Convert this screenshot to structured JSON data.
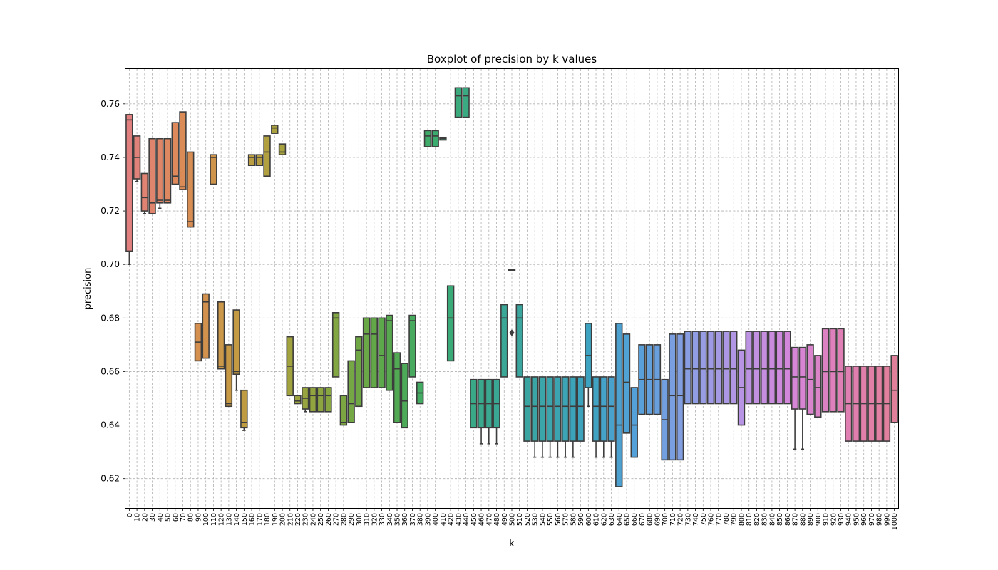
{
  "chart_data": {
    "type": "boxplot",
    "title": "Boxplot of precision by k values",
    "xlabel": "k",
    "ylabel": "precision",
    "ylim": [
      0.609,
      0.773
    ],
    "yticks": [
      "0.62",
      "0.64",
      "0.66",
      "0.68",
      "0.70",
      "0.72",
      "0.74",
      "0.76"
    ],
    "grid": true,
    "palette": [
      "#e1807f",
      "#dc8a57",
      "#c79a44",
      "#a7a23e",
      "#84a640",
      "#5aa84a",
      "#3aac6e",
      "#3aa88f",
      "#3ba5a6",
      "#3da3c0",
      "#56a0db",
      "#8c9ee2",
      "#b894e4",
      "#d586d9",
      "#e07fb4",
      "#e1809a"
    ],
    "boxes": [
      {
        "k": "0",
        "q1": 0.705,
        "med": 0.754,
        "q3": 0.756,
        "lo": 0.7,
        "hi": 0.756
      },
      {
        "k": "10",
        "q1": 0.732,
        "med": 0.74,
        "q3": 0.748,
        "lo": 0.731,
        "hi": 0.748
      },
      {
        "k": "20",
        "q1": 0.72,
        "med": 0.725,
        "q3": 0.734,
        "lo": 0.719,
        "hi": 0.734
      },
      {
        "k": "30",
        "q1": 0.719,
        "med": 0.723,
        "q3": 0.747,
        "lo": 0.719,
        "hi": 0.747
      },
      {
        "k": "40",
        "q1": 0.723,
        "med": 0.724,
        "q3": 0.747,
        "lo": 0.721,
        "hi": 0.747
      },
      {
        "k": "50",
        "q1": 0.723,
        "med": 0.724,
        "q3": 0.747,
        "lo": 0.723,
        "hi": 0.747
      },
      {
        "k": "60",
        "q1": 0.73,
        "med": 0.733,
        "q3": 0.753,
        "lo": 0.73,
        "hi": 0.753
      },
      {
        "k": "70",
        "q1": 0.728,
        "med": 0.729,
        "q3": 0.757,
        "lo": 0.728,
        "hi": 0.757
      },
      {
        "k": "80",
        "q1": 0.714,
        "med": 0.716,
        "q3": 0.742,
        "lo": 0.714,
        "hi": 0.742
      },
      {
        "k": "90",
        "q1": 0.664,
        "med": 0.671,
        "q3": 0.678,
        "lo": 0.664,
        "hi": 0.678
      },
      {
        "k": "100",
        "q1": 0.665,
        "med": 0.686,
        "q3": 0.689,
        "lo": 0.665,
        "hi": 0.689
      },
      {
        "k": "110",
        "q1": 0.73,
        "med": 0.74,
        "q3": 0.741,
        "lo": 0.73,
        "hi": 0.741
      },
      {
        "k": "120",
        "q1": 0.661,
        "med": 0.662,
        "q3": 0.686,
        "lo": 0.661,
        "hi": 0.686
      },
      {
        "k": "130",
        "q1": 0.647,
        "med": 0.648,
        "q3": 0.67,
        "lo": 0.647,
        "hi": 0.67
      },
      {
        "k": "140",
        "q1": 0.659,
        "med": 0.66,
        "q3": 0.683,
        "lo": 0.653,
        "hi": 0.683
      },
      {
        "k": "150",
        "q1": 0.639,
        "med": 0.641,
        "q3": 0.653,
        "lo": 0.638,
        "hi": 0.653
      },
      {
        "k": "160",
        "q1": 0.737,
        "med": 0.74,
        "q3": 0.741,
        "lo": 0.737,
        "hi": 0.741
      },
      {
        "k": "170",
        "q1": 0.737,
        "med": 0.74,
        "q3": 0.741,
        "lo": 0.737,
        "hi": 0.741
      },
      {
        "k": "180",
        "q1": 0.733,
        "med": 0.742,
        "q3": 0.748,
        "lo": 0.733,
        "hi": 0.748
      },
      {
        "k": "190",
        "q1": 0.749,
        "med": 0.751,
        "q3": 0.752,
        "lo": 0.749,
        "hi": 0.752
      },
      {
        "k": "200",
        "q1": 0.741,
        "med": 0.742,
        "q3": 0.745,
        "lo": 0.741,
        "hi": 0.745
      },
      {
        "k": "210",
        "q1": 0.651,
        "med": 0.662,
        "q3": 0.673,
        "lo": 0.651,
        "hi": 0.673
      },
      {
        "k": "220",
        "q1": 0.648,
        "med": 0.649,
        "q3": 0.651,
        "lo": 0.648,
        "hi": 0.651
      },
      {
        "k": "230",
        "q1": 0.646,
        "med": 0.65,
        "q3": 0.654,
        "lo": 0.645,
        "hi": 0.654
      },
      {
        "k": "240",
        "q1": 0.645,
        "med": 0.651,
        "q3": 0.654,
        "lo": 0.645,
        "hi": 0.654
      },
      {
        "k": "250",
        "q1": 0.645,
        "med": 0.651,
        "q3": 0.654,
        "lo": 0.645,
        "hi": 0.654
      },
      {
        "k": "260",
        "q1": 0.645,
        "med": 0.651,
        "q3": 0.654,
        "lo": 0.645,
        "hi": 0.654
      },
      {
        "k": "270",
        "q1": 0.658,
        "med": 0.68,
        "q3": 0.682,
        "lo": 0.658,
        "hi": 0.682
      },
      {
        "k": "280",
        "q1": 0.64,
        "med": 0.641,
        "q3": 0.651,
        "lo": 0.64,
        "hi": 0.651
      },
      {
        "k": "290",
        "q1": 0.641,
        "med": 0.648,
        "q3": 0.664,
        "lo": 0.641,
        "hi": 0.664
      },
      {
        "k": "300",
        "q1": 0.647,
        "med": 0.668,
        "q3": 0.673,
        "lo": 0.647,
        "hi": 0.673
      },
      {
        "k": "310",
        "q1": 0.654,
        "med": 0.674,
        "q3": 0.68,
        "lo": 0.654,
        "hi": 0.68
      },
      {
        "k": "320",
        "q1": 0.654,
        "med": 0.674,
        "q3": 0.68,
        "lo": 0.654,
        "hi": 0.68
      },
      {
        "k": "330",
        "q1": 0.654,
        "med": 0.666,
        "q3": 0.68,
        "lo": 0.654,
        "hi": 0.68
      },
      {
        "k": "340",
        "q1": 0.653,
        "med": 0.679,
        "q3": 0.681,
        "lo": 0.653,
        "hi": 0.681
      },
      {
        "k": "350",
        "q1": 0.641,
        "med": 0.661,
        "q3": 0.667,
        "lo": 0.641,
        "hi": 0.667
      },
      {
        "k": "360",
        "q1": 0.639,
        "med": 0.649,
        "q3": 0.663,
        "lo": 0.639,
        "hi": 0.663
      },
      {
        "k": "370",
        "q1": 0.658,
        "med": 0.679,
        "q3": 0.681,
        "lo": 0.658,
        "hi": 0.681
      },
      {
        "k": "380",
        "q1": 0.648,
        "med": 0.652,
        "q3": 0.656,
        "lo": 0.648,
        "hi": 0.656
      },
      {
        "k": "390",
        "q1": 0.744,
        "med": 0.748,
        "q3": 0.75,
        "lo": 0.744,
        "hi": 0.75
      },
      {
        "k": "400",
        "q1": 0.744,
        "med": 0.748,
        "q3": 0.75,
        "lo": 0.744,
        "hi": 0.75
      },
      {
        "k": "410",
        "q1": 0.7465,
        "med": 0.747,
        "q3": 0.7475,
        "lo": 0.7465,
        "hi": 0.7475
      },
      {
        "k": "420",
        "q1": 0.664,
        "med": 0.68,
        "q3": 0.692,
        "lo": 0.664,
        "hi": 0.692
      },
      {
        "k": "430",
        "q1": 0.755,
        "med": 0.763,
        "q3": 0.766,
        "lo": 0.755,
        "hi": 0.766
      },
      {
        "k": "440",
        "q1": 0.755,
        "med": 0.763,
        "q3": 0.766,
        "lo": 0.755,
        "hi": 0.766
      },
      {
        "k": "450",
        "q1": 0.639,
        "med": 0.648,
        "q3": 0.657,
        "lo": 0.639,
        "hi": 0.657
      },
      {
        "k": "460",
        "q1": 0.639,
        "med": 0.648,
        "q3": 0.657,
        "lo": 0.633,
        "hi": 0.657
      },
      {
        "k": "470",
        "q1": 0.639,
        "med": 0.648,
        "q3": 0.657,
        "lo": 0.633,
        "hi": 0.657
      },
      {
        "k": "480",
        "q1": 0.639,
        "med": 0.648,
        "q3": 0.657,
        "lo": 0.633,
        "hi": 0.657
      },
      {
        "k": "490",
        "q1": 0.658,
        "med": 0.68,
        "q3": 0.685,
        "lo": 0.658,
        "hi": 0.685
      },
      {
        "k": "500",
        "q1": 0.698,
        "med": 0.698,
        "q3": 0.698,
        "lo": 0.698,
        "hi": 0.698,
        "outliers": [
          0.6745,
          0.6745
        ]
      },
      {
        "k": "510",
        "q1": 0.658,
        "med": 0.68,
        "q3": 0.685,
        "lo": 0.658,
        "hi": 0.685
      },
      {
        "k": "520",
        "q1": 0.634,
        "med": 0.647,
        "q3": 0.658,
        "lo": 0.634,
        "hi": 0.658
      },
      {
        "k": "530",
        "q1": 0.634,
        "med": 0.647,
        "q3": 0.658,
        "lo": 0.628,
        "hi": 0.658
      },
      {
        "k": "540",
        "q1": 0.634,
        "med": 0.647,
        "q3": 0.658,
        "lo": 0.628,
        "hi": 0.658
      },
      {
        "k": "550",
        "q1": 0.634,
        "med": 0.647,
        "q3": 0.658,
        "lo": 0.628,
        "hi": 0.658
      },
      {
        "k": "560",
        "q1": 0.634,
        "med": 0.647,
        "q3": 0.658,
        "lo": 0.628,
        "hi": 0.658
      },
      {
        "k": "570",
        "q1": 0.634,
        "med": 0.647,
        "q3": 0.658,
        "lo": 0.628,
        "hi": 0.658
      },
      {
        "k": "580",
        "q1": 0.634,
        "med": 0.647,
        "q3": 0.658,
        "lo": 0.628,
        "hi": 0.658
      },
      {
        "k": "590",
        "q1": 0.634,
        "med": 0.647,
        "q3": 0.658,
        "lo": 0.634,
        "hi": 0.658
      },
      {
        "k": "600",
        "q1": 0.654,
        "med": 0.666,
        "q3": 0.678,
        "lo": 0.647,
        "hi": 0.678
      },
      {
        "k": "610",
        "q1": 0.634,
        "med": 0.647,
        "q3": 0.658,
        "lo": 0.628,
        "hi": 0.658
      },
      {
        "k": "620",
        "q1": 0.634,
        "med": 0.647,
        "q3": 0.658,
        "lo": 0.628,
        "hi": 0.658
      },
      {
        "k": "630",
        "q1": 0.634,
        "med": 0.647,
        "q3": 0.658,
        "lo": 0.628,
        "hi": 0.658
      },
      {
        "k": "640",
        "q1": 0.617,
        "med": 0.64,
        "q3": 0.678,
        "lo": 0.617,
        "hi": 0.678
      },
      {
        "k": "650",
        "q1": 0.637,
        "med": 0.656,
        "q3": 0.674,
        "lo": 0.637,
        "hi": 0.674
      },
      {
        "k": "660",
        "q1": 0.628,
        "med": 0.64,
        "q3": 0.654,
        "lo": 0.628,
        "hi": 0.654
      },
      {
        "k": "670",
        "q1": 0.644,
        "med": 0.657,
        "q3": 0.67,
        "lo": 0.644,
        "hi": 0.67
      },
      {
        "k": "680",
        "q1": 0.644,
        "med": 0.657,
        "q3": 0.67,
        "lo": 0.644,
        "hi": 0.67
      },
      {
        "k": "690",
        "q1": 0.644,
        "med": 0.657,
        "q3": 0.67,
        "lo": 0.644,
        "hi": 0.67
      },
      {
        "k": "700",
        "q1": 0.627,
        "med": 0.642,
        "q3": 0.657,
        "lo": 0.627,
        "hi": 0.657
      },
      {
        "k": "710",
        "q1": 0.627,
        "med": 0.651,
        "q3": 0.674,
        "lo": 0.627,
        "hi": 0.674
      },
      {
        "k": "720",
        "q1": 0.627,
        "med": 0.651,
        "q3": 0.674,
        "lo": 0.627,
        "hi": 0.674
      },
      {
        "k": "730",
        "q1": 0.648,
        "med": 0.661,
        "q3": 0.675,
        "lo": 0.648,
        "hi": 0.675
      },
      {
        "k": "740",
        "q1": 0.648,
        "med": 0.661,
        "q3": 0.675,
        "lo": 0.648,
        "hi": 0.675
      },
      {
        "k": "750",
        "q1": 0.648,
        "med": 0.661,
        "q3": 0.675,
        "lo": 0.648,
        "hi": 0.675
      },
      {
        "k": "760",
        "q1": 0.648,
        "med": 0.661,
        "q3": 0.675,
        "lo": 0.648,
        "hi": 0.675
      },
      {
        "k": "770",
        "q1": 0.648,
        "med": 0.661,
        "q3": 0.675,
        "lo": 0.648,
        "hi": 0.675
      },
      {
        "k": "780",
        "q1": 0.648,
        "med": 0.661,
        "q3": 0.675,
        "lo": 0.648,
        "hi": 0.675
      },
      {
        "k": "790",
        "q1": 0.648,
        "med": 0.661,
        "q3": 0.675,
        "lo": 0.648,
        "hi": 0.675
      },
      {
        "k": "800",
        "q1": 0.64,
        "med": 0.654,
        "q3": 0.668,
        "lo": 0.64,
        "hi": 0.668
      },
      {
        "k": "810",
        "q1": 0.648,
        "med": 0.661,
        "q3": 0.675,
        "lo": 0.648,
        "hi": 0.675
      },
      {
        "k": "820",
        "q1": 0.648,
        "med": 0.661,
        "q3": 0.675,
        "lo": 0.648,
        "hi": 0.675
      },
      {
        "k": "830",
        "q1": 0.648,
        "med": 0.661,
        "q3": 0.675,
        "lo": 0.648,
        "hi": 0.675
      },
      {
        "k": "840",
        "q1": 0.648,
        "med": 0.661,
        "q3": 0.675,
        "lo": 0.648,
        "hi": 0.675
      },
      {
        "k": "850",
        "q1": 0.648,
        "med": 0.661,
        "q3": 0.675,
        "lo": 0.648,
        "hi": 0.675
      },
      {
        "k": "860",
        "q1": 0.648,
        "med": 0.661,
        "q3": 0.675,
        "lo": 0.648,
        "hi": 0.675
      },
      {
        "k": "870",
        "q1": 0.646,
        "med": 0.658,
        "q3": 0.669,
        "lo": 0.631,
        "hi": 0.669
      },
      {
        "k": "880",
        "q1": 0.646,
        "med": 0.658,
        "q3": 0.669,
        "lo": 0.631,
        "hi": 0.669
      },
      {
        "k": "890",
        "q1": 0.644,
        "med": 0.657,
        "q3": 0.67,
        "lo": 0.644,
        "hi": 0.67
      },
      {
        "k": "900",
        "q1": 0.643,
        "med": 0.654,
        "q3": 0.666,
        "lo": 0.643,
        "hi": 0.666
      },
      {
        "k": "910",
        "q1": 0.645,
        "med": 0.66,
        "q3": 0.676,
        "lo": 0.645,
        "hi": 0.676
      },
      {
        "k": "920",
        "q1": 0.645,
        "med": 0.66,
        "q3": 0.676,
        "lo": 0.645,
        "hi": 0.676
      },
      {
        "k": "930",
        "q1": 0.645,
        "med": 0.66,
        "q3": 0.676,
        "lo": 0.645,
        "hi": 0.676
      },
      {
        "k": "940",
        "q1": 0.634,
        "med": 0.648,
        "q3": 0.662,
        "lo": 0.634,
        "hi": 0.662
      },
      {
        "k": "950",
        "q1": 0.634,
        "med": 0.648,
        "q3": 0.662,
        "lo": 0.634,
        "hi": 0.662
      },
      {
        "k": "960",
        "q1": 0.634,
        "med": 0.648,
        "q3": 0.662,
        "lo": 0.634,
        "hi": 0.662
      },
      {
        "k": "970",
        "q1": 0.634,
        "med": 0.648,
        "q3": 0.662,
        "lo": 0.634,
        "hi": 0.662
      },
      {
        "k": "980",
        "q1": 0.634,
        "med": 0.648,
        "q3": 0.662,
        "lo": 0.634,
        "hi": 0.662
      },
      {
        "k": "990",
        "q1": 0.634,
        "med": 0.648,
        "q3": 0.662,
        "lo": 0.634,
        "hi": 0.662
      },
      {
        "k": "1000",
        "q1": 0.641,
        "med": 0.653,
        "q3": 0.666,
        "lo": 0.641,
        "hi": 0.666
      }
    ]
  }
}
